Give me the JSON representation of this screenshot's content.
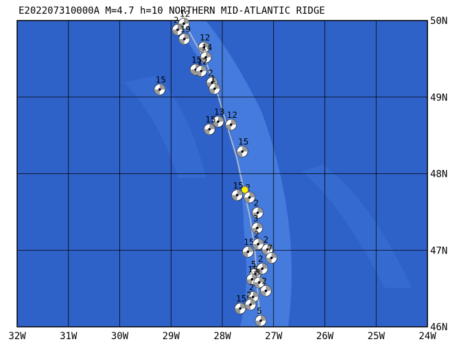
{
  "map": {
    "title": "E202207310000A M=4.7 h=10 NORTHERN MID-ATLANTIC RIDGE",
    "xlim": [
      -32,
      -24
    ],
    "ylim": [
      46,
      50
    ],
    "xticks": [
      {
        "value": -32,
        "label": "32W"
      },
      {
        "value": -31,
        "label": "31W"
      },
      {
        "value": -30,
        "label": "30W"
      },
      {
        "value": -29,
        "label": "29W"
      },
      {
        "value": -28,
        "label": "28W"
      },
      {
        "value": -27,
        "label": "27W"
      },
      {
        "value": -26,
        "label": "26W"
      },
      {
        "value": -25,
        "label": "25W"
      },
      {
        "value": -24,
        "label": "24W"
      }
    ],
    "yticks": [
      {
        "value": 46,
        "label": "46N"
      },
      {
        "value": 47,
        "label": "47N"
      },
      {
        "value": 48,
        "label": "48N"
      },
      {
        "value": 49,
        "label": "49N"
      },
      {
        "value": 50,
        "label": "50N"
      }
    ],
    "main_event": {
      "lon": -27.56,
      "lat": 47.79
    },
    "events": [
      {
        "lon": -28.75,
        "lat": 49.96,
        "label": "12"
      },
      {
        "lon": -28.87,
        "lat": 49.88,
        "label": "2"
      },
      {
        "lon": -28.74,
        "lat": 49.76,
        "label": "19"
      },
      {
        "lon": -28.36,
        "lat": 49.65,
        "label": "12"
      },
      {
        "lon": -28.32,
        "lat": 49.52,
        "label": "14"
      },
      {
        "lon": -28.52,
        "lat": 49.36,
        "label": "15"
      },
      {
        "lon": -28.41,
        "lat": 49.34,
        "label": "12"
      },
      {
        "lon": -28.2,
        "lat": 49.19,
        "label": "2"
      },
      {
        "lon": -28.15,
        "lat": 49.11,
        "label": "1"
      },
      {
        "lon": -29.22,
        "lat": 49.1,
        "label": "15"
      },
      {
        "lon": -28.08,
        "lat": 48.68,
        "label": "13"
      },
      {
        "lon": -28.25,
        "lat": 48.58,
        "label": "15"
      },
      {
        "lon": -27.83,
        "lat": 48.64,
        "label": "12"
      },
      {
        "lon": -27.61,
        "lat": 48.29,
        "label": "15"
      },
      {
        "lon": -27.71,
        "lat": 47.72,
        "label": "15"
      },
      {
        "lon": -27.47,
        "lat": 47.69,
        "label": "2"
      },
      {
        "lon": -27.31,
        "lat": 47.49,
        "label": "2"
      },
      {
        "lon": -27.32,
        "lat": 47.29,
        "label": "3"
      },
      {
        "lon": -27.5,
        "lat": 46.98,
        "label": "15"
      },
      {
        "lon": -27.3,
        "lat": 47.08,
        "label": "2"
      },
      {
        "lon": -27.12,
        "lat": 47.01,
        "label": "2"
      },
      {
        "lon": -27.04,
        "lat": 46.9,
        "label": "7"
      },
      {
        "lon": -27.36,
        "lat": 46.69,
        "label": "5"
      },
      {
        "lon": -27.22,
        "lat": 46.76,
        "label": "2"
      },
      {
        "lon": -27.42,
        "lat": 46.62,
        "label": "15"
      },
      {
        "lon": -27.28,
        "lat": 46.58,
        "label": "3"
      },
      {
        "lon": -27.15,
        "lat": 46.47,
        "label": "2"
      },
      {
        "lon": -27.4,
        "lat": 46.39,
        "label": "2"
      },
      {
        "lon": -27.65,
        "lat": 46.24,
        "label": "15"
      },
      {
        "lon": -27.45,
        "lat": 46.29,
        "label": "2"
      },
      {
        "lon": -27.25,
        "lat": 46.08,
        "label": "5"
      }
    ]
  }
}
